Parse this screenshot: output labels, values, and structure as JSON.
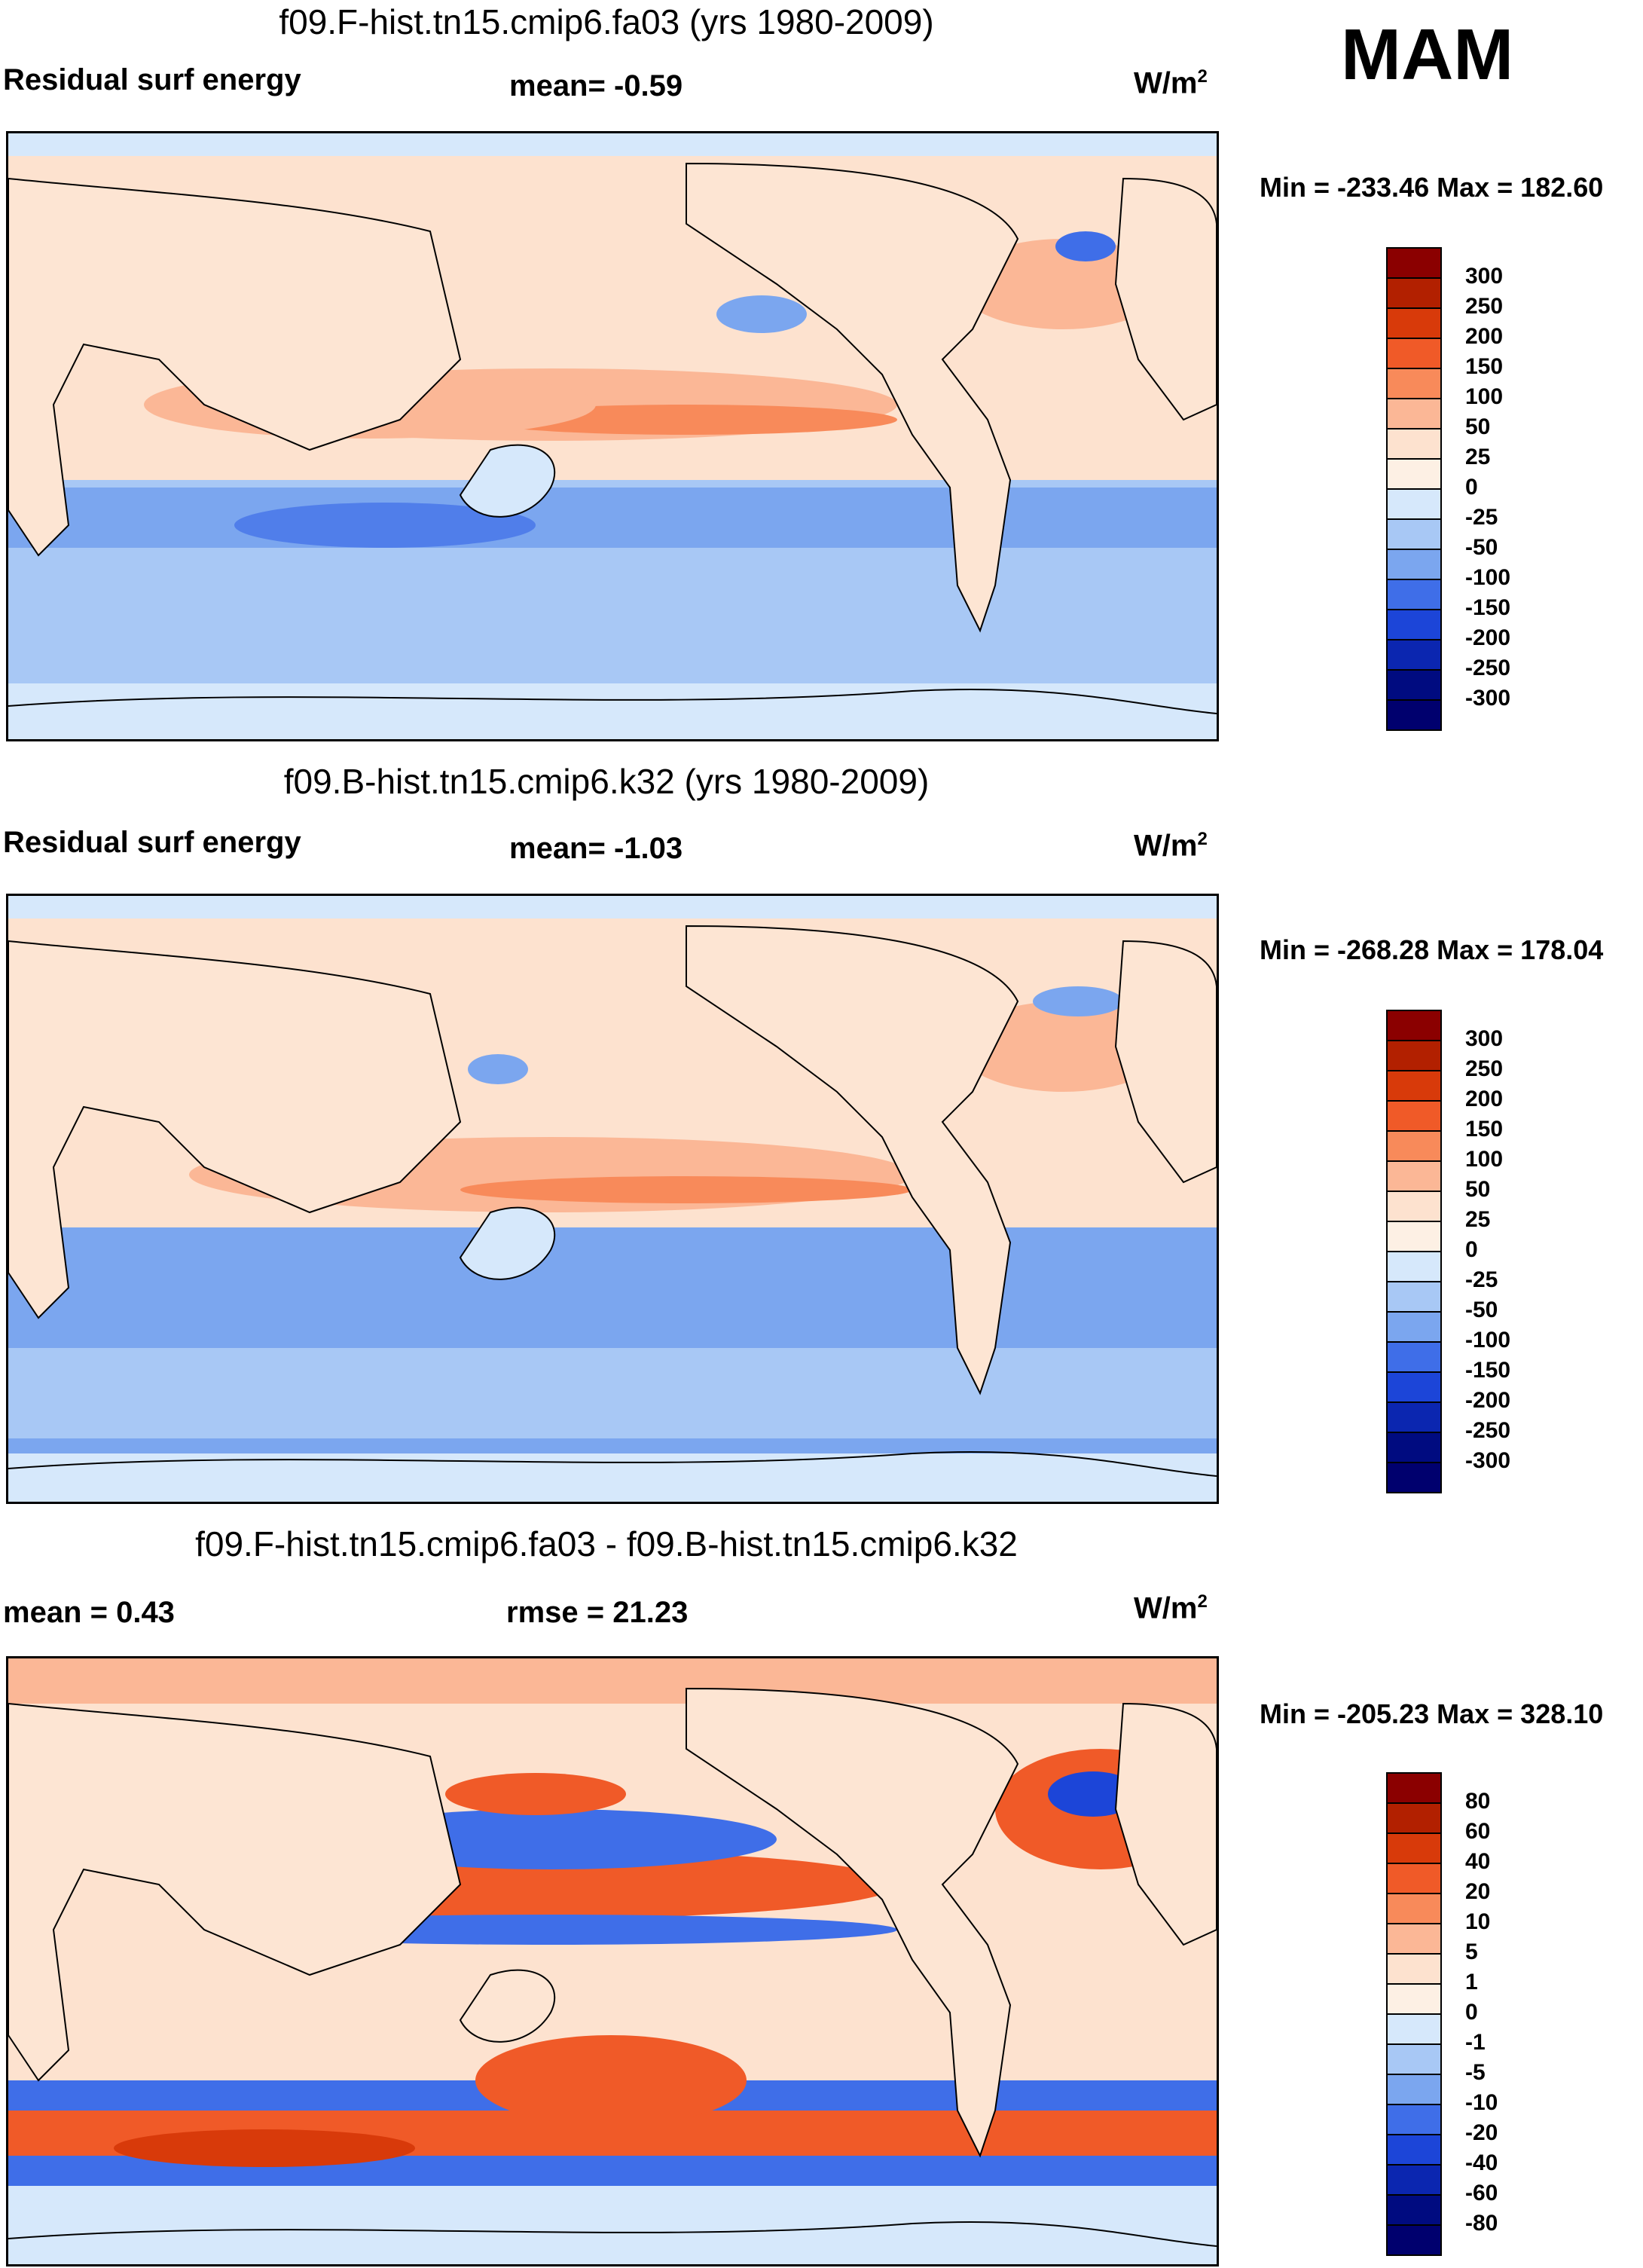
{
  "season": "MAM",
  "panels": [
    {
      "title": "f09.F-hist.tn15.cmip6.fa03 (yrs 1980-2009)",
      "left_label": "Residual surf energy",
      "center_label": "mean=  -0.59",
      "units": "W/m",
      "units_exp": "2",
      "minmax": "Min = -233.46 Max = 182.60",
      "colorbar_labels": [
        "300",
        "250",
        "200",
        "150",
        "100",
        "50",
        "25",
        "0",
        "-25",
        "-50",
        "-100",
        "-150",
        "-200",
        "-250",
        "-300"
      ]
    },
    {
      "title": "f09.B-hist.tn15.cmip6.k32 (yrs 1980-2009)",
      "left_label": "Residual surf energy",
      "center_label": "mean=  -1.03",
      "units": "W/m",
      "units_exp": "2",
      "minmax": "Min = -268.28 Max = 178.04",
      "colorbar_labels": [
        "300",
        "250",
        "200",
        "150",
        "100",
        "50",
        "25",
        "0",
        "-25",
        "-50",
        "-100",
        "-150",
        "-200",
        "-250",
        "-300"
      ]
    },
    {
      "title": "f09.F-hist.tn15.cmip6.fa03 - f09.B-hist.tn15.cmip6.k32",
      "left_label": "mean =   0.43",
      "center_label": "rmse =  21.23",
      "units": "W/m",
      "units_exp": "2",
      "minmax": "Min = -205.23 Max = 328.10",
      "colorbar_labels": [
        "80",
        "60",
        "40",
        "20",
        "10",
        "5",
        "1",
        "0",
        "-1",
        "-5",
        "-10",
        "-20",
        "-40",
        "-60",
        "-80"
      ]
    }
  ],
  "colors": {
    "scale": [
      "#8b0000",
      "#b22000",
      "#d83a0a",
      "#f05a28",
      "#f88a5a",
      "#fbb796",
      "#fde2cf",
      "#fdf0e4",
      "#d6e8fb",
      "#a8c8f5",
      "#7ba6ef",
      "#3f6ee8",
      "#1c45d8",
      "#0b26b0",
      "#000b80",
      "#00006e"
    ],
    "ocean_light": "#d6e8fb",
    "land": "#fde5d3"
  }
}
